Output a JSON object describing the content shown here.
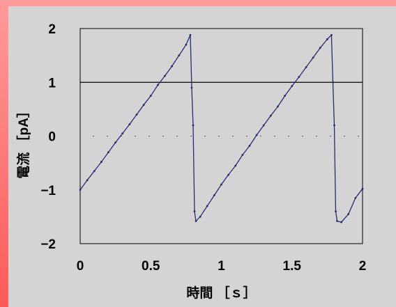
{
  "chart_data": {
    "type": "line",
    "title": "",
    "xlabel": "時間 ［ｓ］",
    "ylabel": "電流 ［pA］",
    "xlim": [
      0,
      2
    ],
    "ylim": [
      -2,
      2
    ],
    "x_ticks": [
      "0",
      "0.5",
      "1",
      "1.5",
      "2"
    ],
    "y_ticks": [
      "2",
      "1",
      "0",
      "−1",
      "−2"
    ],
    "reference_line_y": 1,
    "zero_line_style": "dotted",
    "grid": false,
    "legend": "none",
    "series": [
      {
        "color": "#2a2a6e",
        "x": [
          0.0,
          0.05,
          0.1,
          0.15,
          0.2,
          0.25,
          0.3,
          0.35,
          0.4,
          0.45,
          0.5,
          0.55,
          0.6,
          0.65,
          0.7,
          0.75,
          0.78,
          0.79,
          0.8,
          0.81,
          0.82,
          0.85,
          0.9,
          0.95,
          1.0,
          1.05,
          1.1,
          1.15,
          1.2,
          1.25,
          1.3,
          1.35,
          1.4,
          1.45,
          1.5,
          1.55,
          1.6,
          1.65,
          1.7,
          1.75,
          1.78,
          1.79,
          1.8,
          1.81,
          1.82,
          1.85,
          1.9,
          1.95,
          2.0
        ],
        "y": [
          -1.0,
          -0.82,
          -0.65,
          -0.48,
          -0.3,
          -0.12,
          0.05,
          0.22,
          0.4,
          0.58,
          0.75,
          0.95,
          1.12,
          1.3,
          1.5,
          1.7,
          1.88,
          0.9,
          0.2,
          -1.4,
          -1.58,
          -1.5,
          -1.3,
          -1.1,
          -0.9,
          -0.72,
          -0.55,
          -0.35,
          -0.18,
          0.02,
          0.2,
          0.38,
          0.55,
          0.75,
          0.93,
          1.1,
          1.28,
          1.46,
          1.64,
          1.8,
          1.88,
          1.0,
          0.2,
          -1.4,
          -1.58,
          -1.6,
          -1.45,
          -1.15,
          -0.98
        ]
      }
    ]
  },
  "colors": {
    "frame_top": "#ff9b9b",
    "frame_bottom": "#ff5a5a",
    "panel": "#d4d4d4",
    "axis": "#000000",
    "line": "#2a2a6e"
  }
}
